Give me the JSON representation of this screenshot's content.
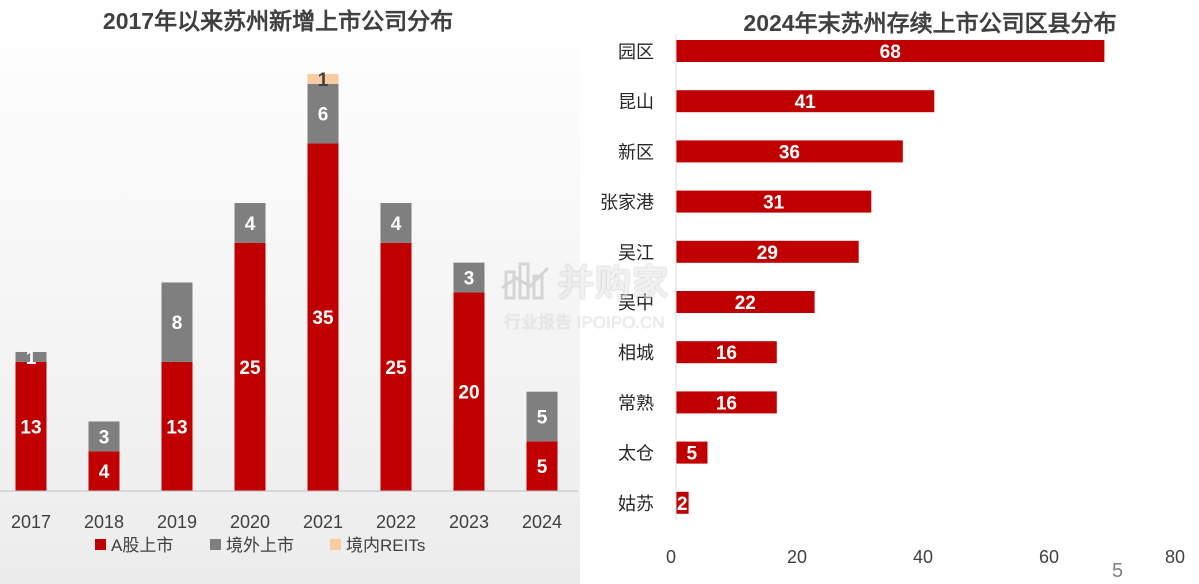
{
  "chart_data": [
    {
      "type": "bar",
      "stacked": true,
      "title": "2017年以来苏州新增上市公司分布",
      "categories": [
        "2017",
        "2018",
        "2019",
        "2020",
        "2021",
        "2022",
        "2023",
        "2024"
      ],
      "series": [
        {
          "name": "A股上市",
          "color": "#c00000",
          "values": [
            13,
            4,
            13,
            25,
            35,
            25,
            20,
            5
          ]
        },
        {
          "name": "境外上市",
          "color": "#7f7f7f",
          "values": [
            1,
            3,
            8,
            4,
            6,
            4,
            3,
            5
          ]
        },
        {
          "name": "境内REITs",
          "color": "#f8cba0",
          "values": [
            0,
            0,
            0,
            0,
            1,
            0,
            0,
            0
          ]
        }
      ],
      "ylim": [
        0,
        42
      ],
      "legend_position": "bottom",
      "grid": false
    },
    {
      "type": "bar",
      "orientation": "horizontal",
      "title": "2024年末苏州存续上市公司区县分布",
      "categories": [
        "园区",
        "昆山",
        "新区",
        "张家港",
        "吴江",
        "吴中",
        "相城",
        "常熟",
        "太仓",
        "姑苏"
      ],
      "values": [
        68,
        41,
        36,
        31,
        29,
        22,
        16,
        16,
        5,
        2
      ],
      "color": "#c00000",
      "xlim": [
        0,
        80
      ],
      "xticks": [
        "0",
        "20",
        "40",
        "60",
        "80"
      ],
      "grid": false
    }
  ],
  "watermark": {
    "name": "并购家",
    "subtitle": "行业报告 IPOIPO.CN"
  },
  "page_number": "5"
}
